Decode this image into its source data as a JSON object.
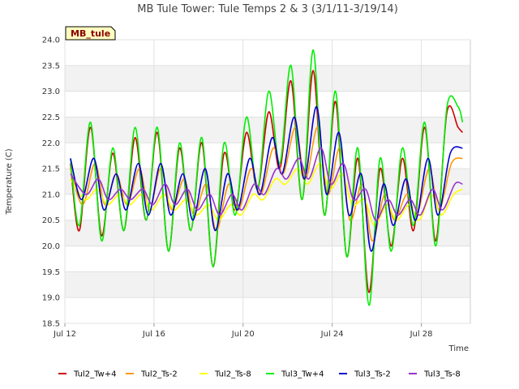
{
  "chart_data": {
    "type": "line",
    "title": "MB Tule Tower: Tule Temps 2 & 3 (3/1/11-3/19/14)",
    "xlabel": "Time",
    "ylabel": "Temperature (C)",
    "ylim": [
      18.5,
      24.0
    ],
    "yticks": [
      "18.5",
      "19.0",
      "19.5",
      "20.0",
      "20.5",
      "21.0",
      "21.5",
      "22.0",
      "22.5",
      "23.0",
      "23.5",
      "24.0"
    ],
    "xlim": [
      12,
      30.2
    ],
    "xticks": [
      {
        "day": 12,
        "label": "Jul 12"
      },
      {
        "day": 16,
        "label": "Jul 16"
      },
      {
        "day": 20,
        "label": "Jul 20"
      },
      {
        "day": 24,
        "label": "Jul 24"
      },
      {
        "day": 28,
        "label": "Jul 28"
      }
    ],
    "tag": "MB_tule",
    "legend_position": "bottom",
    "series": [
      {
        "name": "Tul2_Tw+4",
        "color": "#cc0000",
        "x": [
          12.25,
          12.65,
          13.15,
          13.65,
          14.15,
          14.65,
          15.15,
          15.65,
          16.15,
          16.65,
          17.15,
          17.65,
          18.15,
          18.65,
          19.15,
          19.65,
          20.15,
          20.65,
          21.15,
          21.65,
          22.15,
          22.65,
          23.15,
          23.65,
          24.15,
          24.65,
          25.15,
          25.65,
          26.15,
          26.65,
          27.15,
          27.65,
          28.15,
          28.65,
          29.15,
          29.65,
          29.85
        ],
        "values": [
          21.6,
          20.3,
          22.3,
          20.2,
          21.8,
          20.3,
          22.1,
          20.5,
          22.2,
          19.9,
          21.9,
          20.3,
          22.0,
          19.6,
          21.8,
          20.7,
          22.2,
          21.1,
          22.6,
          21.5,
          23.2,
          20.9,
          23.4,
          20.6,
          22.8,
          19.8,
          21.7,
          19.1,
          21.5,
          20.0,
          21.7,
          20.3,
          22.3,
          20.1,
          22.6,
          22.3,
          22.2
        ]
      },
      {
        "name": "Tul2_Ts-2",
        "color": "#ff9900",
        "x": [
          12.25,
          12.8,
          13.35,
          13.8,
          14.3,
          14.8,
          15.35,
          15.8,
          16.3,
          16.8,
          17.35,
          17.8,
          18.35,
          18.8,
          19.35,
          19.8,
          20.35,
          20.8,
          21.35,
          21.8,
          22.35,
          22.8,
          23.35,
          23.8,
          24.35,
          24.8,
          25.35,
          25.8,
          26.35,
          26.8,
          27.35,
          27.8,
          28.35,
          28.8,
          29.35,
          29.85
        ],
        "values": [
          21.5,
          20.8,
          21.6,
          20.8,
          21.4,
          20.8,
          21.5,
          20.7,
          21.5,
          20.7,
          21.3,
          20.6,
          21.2,
          20.3,
          21.2,
          20.7,
          21.5,
          21.0,
          21.9,
          21.4,
          22.3,
          21.3,
          22.3,
          21.0,
          21.9,
          20.5,
          21.2,
          20.1,
          21.0,
          20.5,
          21.0,
          20.6,
          21.5,
          20.7,
          21.6,
          21.7
        ]
      },
      {
        "name": "Tul2_Ts-8",
        "color": "#ffff00",
        "x": [
          12.25,
          12.9,
          13.45,
          13.9,
          14.45,
          14.9,
          15.45,
          15.9,
          16.45,
          16.9,
          17.45,
          17.9,
          18.45,
          18.9,
          19.45,
          19.9,
          20.45,
          20.9,
          21.45,
          21.9,
          22.45,
          22.9,
          23.45,
          23.9,
          24.45,
          24.9,
          25.45,
          25.9,
          26.45,
          26.9,
          27.45,
          27.9,
          28.45,
          28.9,
          29.45,
          29.85
        ],
        "values": [
          21.3,
          20.9,
          21.1,
          20.8,
          21.0,
          20.8,
          21.0,
          20.7,
          21.0,
          20.7,
          20.9,
          20.6,
          20.8,
          20.5,
          20.8,
          20.6,
          21.0,
          20.9,
          21.3,
          21.2,
          21.5,
          21.2,
          21.6,
          21.1,
          21.4,
          20.8,
          20.9,
          20.4,
          20.8,
          20.5,
          20.8,
          20.5,
          21.0,
          20.6,
          21.0,
          21.1
        ]
      },
      {
        "name": "Tul3_Tw+4",
        "color": "#00ee00",
        "x": [
          12.25,
          12.65,
          13.15,
          13.65,
          14.15,
          14.65,
          15.15,
          15.65,
          16.15,
          16.65,
          17.15,
          17.65,
          18.15,
          18.65,
          19.15,
          19.65,
          20.15,
          20.65,
          21.15,
          21.65,
          22.15,
          22.65,
          23.15,
          23.65,
          24.15,
          24.65,
          25.15,
          25.65,
          26.15,
          26.65,
          27.15,
          27.65,
          28.15,
          28.65,
          29.15,
          29.65,
          29.85
        ],
        "values": [
          21.7,
          20.4,
          22.4,
          20.1,
          21.9,
          20.3,
          22.3,
          20.5,
          22.3,
          19.9,
          22.0,
          20.3,
          22.1,
          19.6,
          22.0,
          20.6,
          22.5,
          21.1,
          23.0,
          21.6,
          23.5,
          20.9,
          23.8,
          20.6,
          23.0,
          19.8,
          21.9,
          18.85,
          21.7,
          19.9,
          21.9,
          20.4,
          22.4,
          20.0,
          22.7,
          22.7,
          22.4
        ]
      },
      {
        "name": "Tul3_Ts-2",
        "color": "#0000cc",
        "x": [
          12.25,
          12.75,
          13.3,
          13.75,
          14.3,
          14.75,
          15.3,
          15.75,
          16.3,
          16.75,
          17.3,
          17.75,
          18.3,
          18.75,
          19.3,
          19.75,
          20.3,
          20.75,
          21.3,
          21.75,
          22.3,
          22.75,
          23.3,
          23.75,
          24.3,
          24.75,
          25.3,
          25.75,
          26.3,
          26.75,
          27.3,
          27.75,
          28.3,
          28.75,
          29.3,
          29.85
        ],
        "values": [
          21.7,
          20.9,
          21.7,
          20.7,
          21.4,
          20.7,
          21.6,
          20.6,
          21.6,
          20.6,
          21.4,
          20.5,
          21.5,
          20.3,
          21.4,
          20.7,
          21.7,
          21.0,
          22.1,
          21.4,
          22.5,
          21.3,
          22.7,
          21.0,
          22.2,
          20.6,
          21.4,
          19.9,
          21.2,
          20.4,
          21.3,
          20.5,
          21.7,
          20.6,
          21.8,
          21.9
        ]
      },
      {
        "name": "Tul3_Ts-8",
        "color": "#9933cc",
        "x": [
          12.25,
          12.95,
          13.5,
          13.95,
          14.5,
          14.95,
          15.5,
          15.95,
          16.5,
          16.95,
          17.5,
          17.95,
          18.5,
          18.95,
          19.5,
          19.95,
          20.5,
          20.95,
          21.5,
          21.95,
          22.5,
          22.95,
          23.5,
          23.95,
          24.5,
          24.95,
          25.5,
          25.95,
          26.5,
          26.95,
          27.5,
          27.95,
          28.5,
          28.95,
          29.5,
          29.85
        ],
        "values": [
          21.4,
          21.0,
          21.3,
          20.9,
          21.1,
          20.9,
          21.1,
          20.8,
          21.2,
          20.8,
          21.1,
          20.7,
          21.0,
          20.6,
          21.0,
          20.7,
          21.2,
          21.0,
          21.5,
          21.3,
          21.7,
          21.3,
          21.9,
          21.2,
          21.6,
          20.9,
          21.1,
          20.5,
          20.9,
          20.6,
          20.9,
          20.6,
          21.1,
          20.7,
          21.2,
          21.2
        ]
      }
    ]
  }
}
